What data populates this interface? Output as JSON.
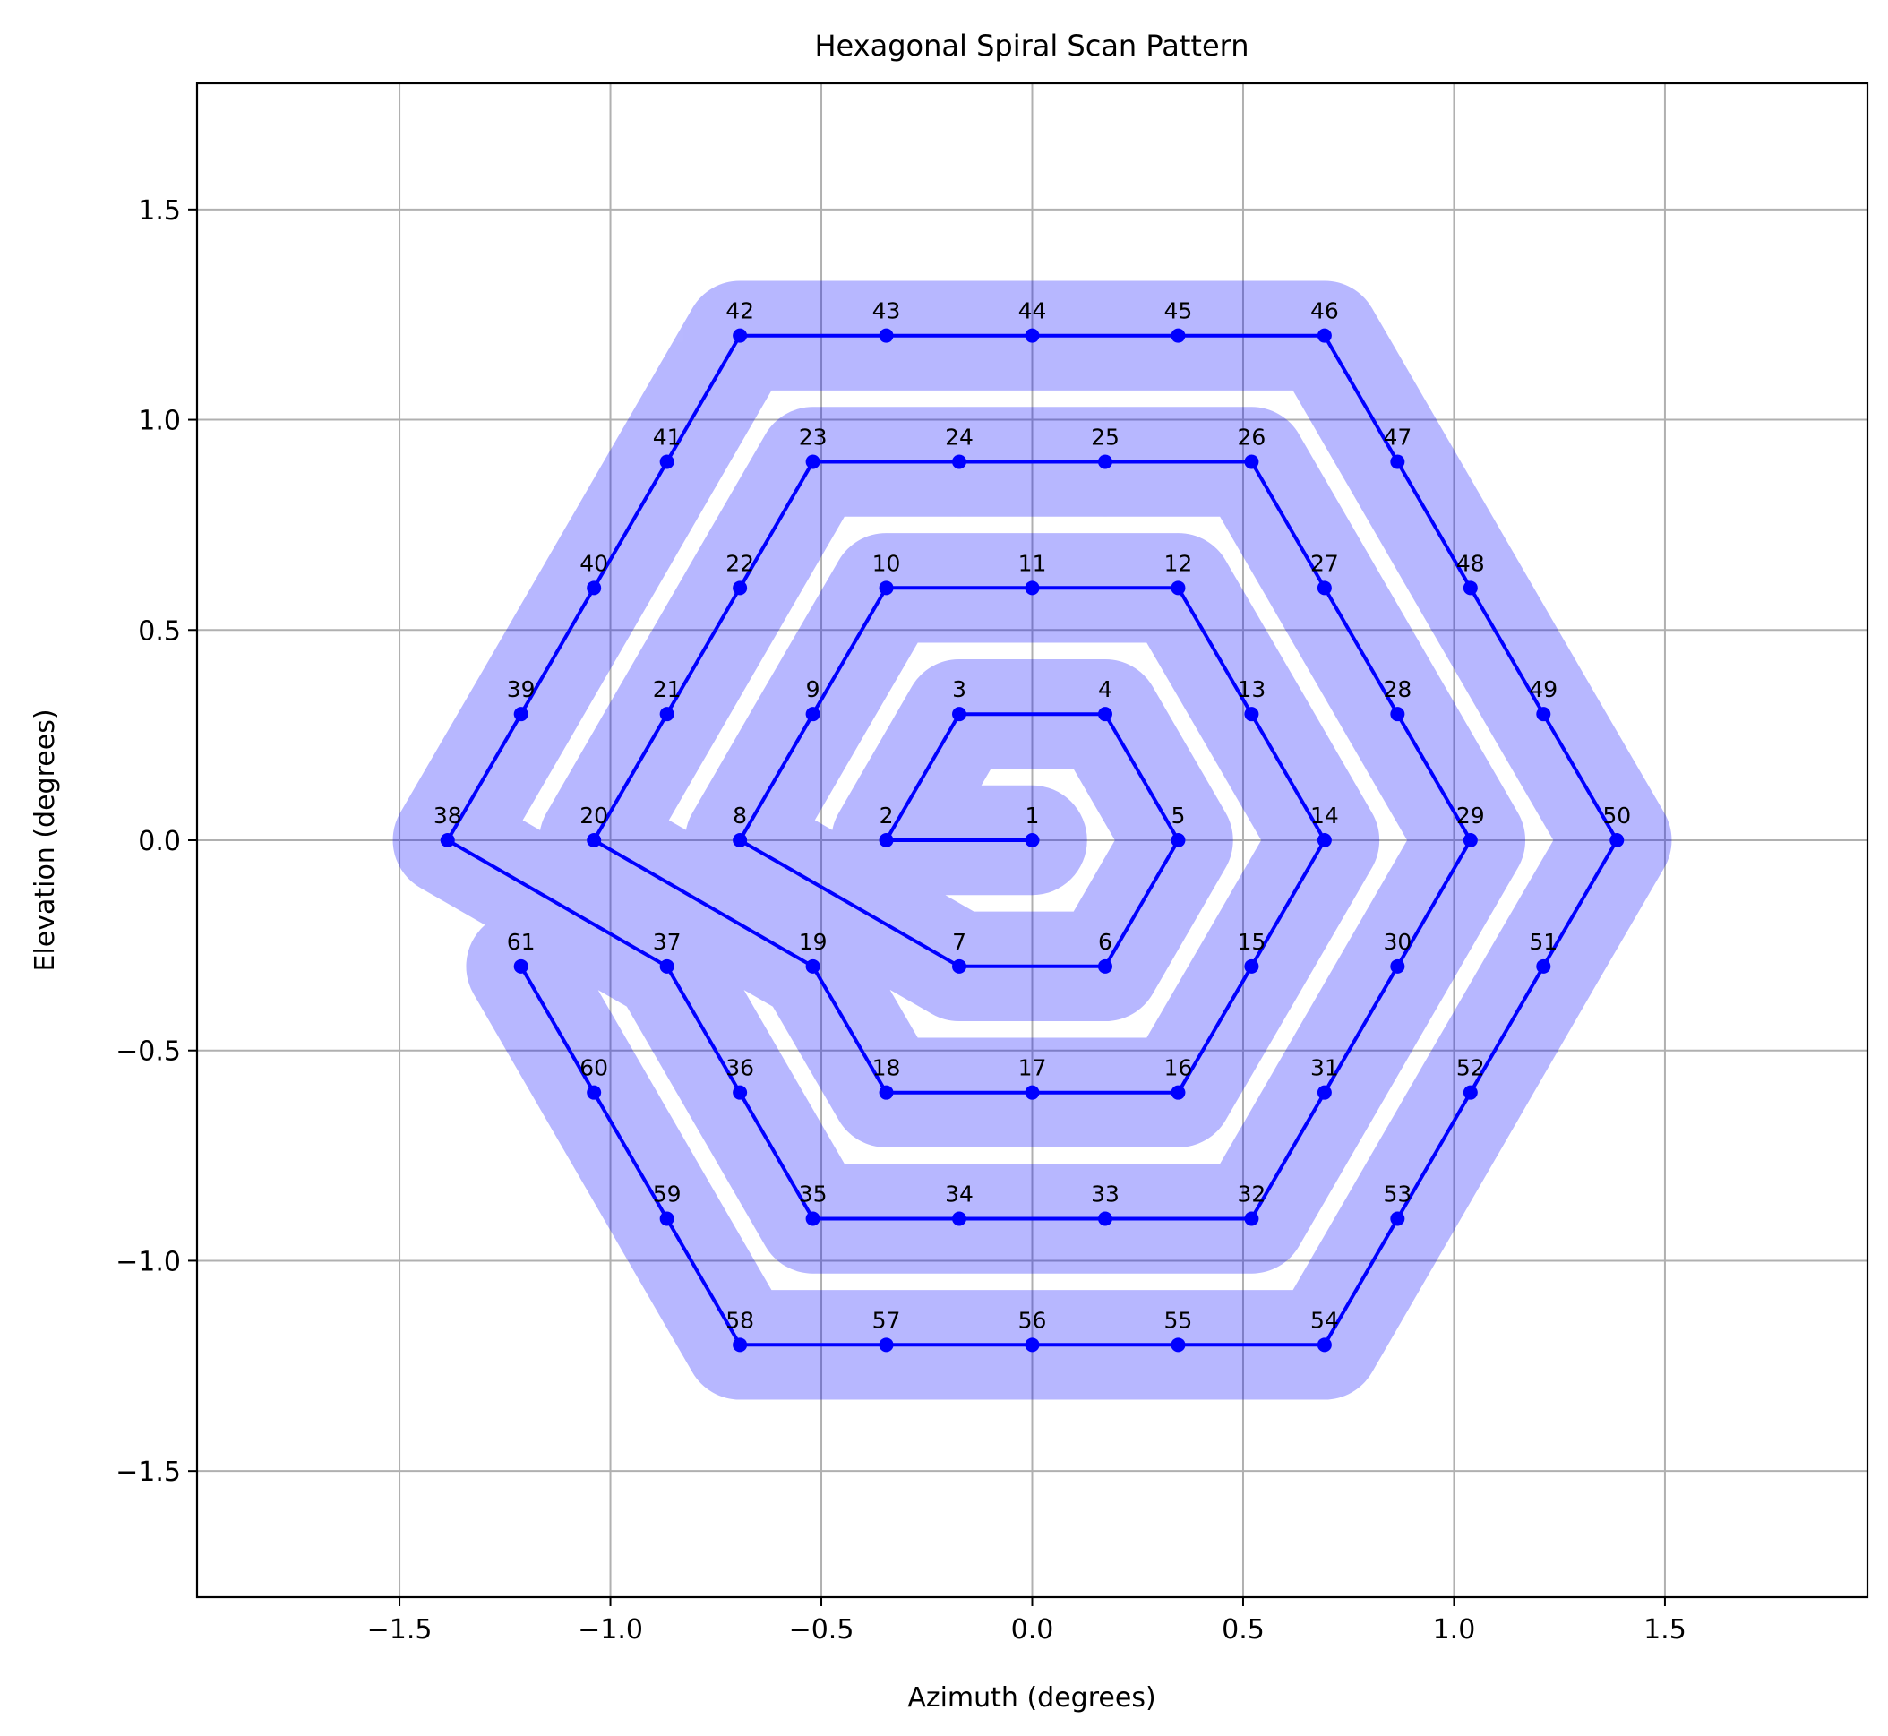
{
  "chart_data": {
    "type": "scatter",
    "title": "Hexagonal Spiral Scan Pattern",
    "xlabel": "Azimuth (degrees)",
    "ylabel": "Elevation (degrees)",
    "xlim": [
      -1.98,
      1.98
    ],
    "ylim": [
      -1.8,
      1.8
    ],
    "x_ticks": [
      -1.5,
      -1.0,
      -0.5,
      0.0,
      0.5,
      1.0,
      1.5
    ],
    "x_tick_labels": [
      "−1.5",
      "−1.0",
      "−0.5",
      "0.0",
      "0.5",
      "1.0",
      "1.5"
    ],
    "y_ticks": [
      1.5,
      1.0,
      0.5,
      0.0,
      -0.5,
      -1.0,
      -1.5
    ],
    "y_tick_labels": [
      "1.5",
      "1.0",
      "0.5",
      "0.0",
      "−0.5",
      "−1.0",
      "−1.5"
    ],
    "grid": true,
    "line_color": "#0000ff",
    "coverage_color": "#0000ff",
    "points": [
      {
        "label": "1",
        "x": 0.0,
        "y": 0.0
      },
      {
        "label": "2",
        "x": -0.346,
        "y": 0.0
      },
      {
        "label": "3",
        "x": -0.173,
        "y": 0.3
      },
      {
        "label": "4",
        "x": 0.173,
        "y": 0.3
      },
      {
        "label": "5",
        "x": 0.346,
        "y": 0.0
      },
      {
        "label": "6",
        "x": 0.173,
        "y": -0.3
      },
      {
        "label": "7",
        "x": -0.173,
        "y": -0.3
      },
      {
        "label": "8",
        "x": -0.693,
        "y": 0.0
      },
      {
        "label": "9",
        "x": -0.52,
        "y": 0.3
      },
      {
        "label": "10",
        "x": -0.346,
        "y": 0.6
      },
      {
        "label": "11",
        "x": 0.0,
        "y": 0.6
      },
      {
        "label": "12",
        "x": 0.346,
        "y": 0.6
      },
      {
        "label": "13",
        "x": 0.52,
        "y": 0.3
      },
      {
        "label": "14",
        "x": 0.693,
        "y": 0.0
      },
      {
        "label": "15",
        "x": 0.52,
        "y": -0.3
      },
      {
        "label": "16",
        "x": 0.346,
        "y": -0.6
      },
      {
        "label": "17",
        "x": 0.0,
        "y": -0.6
      },
      {
        "label": "18",
        "x": -0.346,
        "y": -0.6
      },
      {
        "label": "19",
        "x": -0.52,
        "y": -0.3
      },
      {
        "label": "20",
        "x": -1.039,
        "y": 0.0
      },
      {
        "label": "21",
        "x": -0.866,
        "y": 0.3
      },
      {
        "label": "22",
        "x": -0.693,
        "y": 0.6
      },
      {
        "label": "23",
        "x": -0.52,
        "y": 0.9
      },
      {
        "label": "24",
        "x": -0.173,
        "y": 0.9
      },
      {
        "label": "25",
        "x": 0.173,
        "y": 0.9
      },
      {
        "label": "26",
        "x": 0.52,
        "y": 0.9
      },
      {
        "label": "27",
        "x": 0.693,
        "y": 0.6
      },
      {
        "label": "28",
        "x": 0.866,
        "y": 0.3
      },
      {
        "label": "29",
        "x": 1.039,
        "y": 0.0
      },
      {
        "label": "30",
        "x": 0.866,
        "y": -0.3
      },
      {
        "label": "31",
        "x": 0.693,
        "y": -0.6
      },
      {
        "label": "32",
        "x": 0.52,
        "y": -0.9
      },
      {
        "label": "33",
        "x": 0.173,
        "y": -0.9
      },
      {
        "label": "34",
        "x": -0.173,
        "y": -0.9
      },
      {
        "label": "35",
        "x": -0.52,
        "y": -0.9
      },
      {
        "label": "36",
        "x": -0.693,
        "y": -0.6
      },
      {
        "label": "37",
        "x": -0.866,
        "y": -0.3
      },
      {
        "label": "38",
        "x": -1.386,
        "y": 0.0
      },
      {
        "label": "39",
        "x": -1.212,
        "y": 0.3
      },
      {
        "label": "40",
        "x": -1.039,
        "y": 0.6
      },
      {
        "label": "41",
        "x": -0.866,
        "y": 0.9
      },
      {
        "label": "42",
        "x": -0.693,
        "y": 1.2
      },
      {
        "label": "43",
        "x": -0.346,
        "y": 1.2
      },
      {
        "label": "44",
        "x": 0.0,
        "y": 1.2
      },
      {
        "label": "45",
        "x": 0.346,
        "y": 1.2
      },
      {
        "label": "46",
        "x": 0.693,
        "y": 1.2
      },
      {
        "label": "47",
        "x": 0.866,
        "y": 0.9
      },
      {
        "label": "48",
        "x": 1.039,
        "y": 0.6
      },
      {
        "label": "49",
        "x": 1.212,
        "y": 0.3
      },
      {
        "label": "50",
        "x": 1.386,
        "y": 0.0
      },
      {
        "label": "51",
        "x": 1.212,
        "y": -0.3
      },
      {
        "label": "52",
        "x": 1.039,
        "y": -0.6
      },
      {
        "label": "53",
        "x": 0.866,
        "y": -0.9
      },
      {
        "label": "54",
        "x": 0.693,
        "y": -1.2
      },
      {
        "label": "55",
        "x": 0.346,
        "y": -1.2
      },
      {
        "label": "56",
        "x": 0.0,
        "y": -1.2
      },
      {
        "label": "57",
        "x": -0.346,
        "y": -1.2
      },
      {
        "label": "58",
        "x": -0.693,
        "y": -1.2
      },
      {
        "label": "59",
        "x": -0.866,
        "y": -0.9
      },
      {
        "label": "60",
        "x": -1.039,
        "y": -0.6
      },
      {
        "label": "61",
        "x": -1.212,
        "y": -0.3
      }
    ]
  }
}
